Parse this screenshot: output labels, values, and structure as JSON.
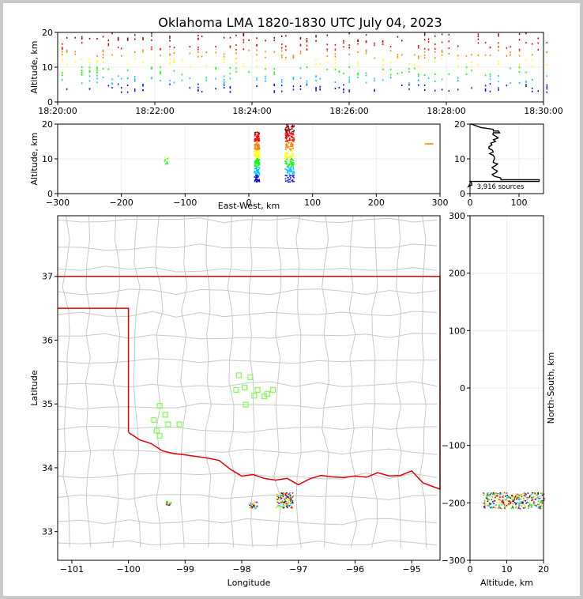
{
  "title": "Oklahoma LMA 1820-1830 UTC July 04, 2023",
  "chart_data": [
    {
      "id": "time-height",
      "type": "scatter",
      "ylabel": "Altitude, km",
      "xlim": [
        "18:20:00",
        "18:30:00"
      ],
      "ylim": [
        0,
        20
      ],
      "x_ticks": [
        "18:20:00",
        "18:22:00",
        "18:24:00",
        "18:26:00",
        "18:28:00",
        "18:30:00"
      ],
      "y_ticks": [
        "0",
        "10",
        "20"
      ],
      "source_altitude_range_km": [
        3,
        20
      ]
    },
    {
      "id": "ew-height",
      "type": "scatter",
      "xlabel": "East-West, km",
      "ylabel": "Altitude, km",
      "xlim": [
        -300,
        300
      ],
      "ylim": [
        0,
        20
      ],
      "x_ticks": [
        "−300",
        "−200",
        "−100",
        "0",
        "100",
        "200",
        "300"
      ],
      "y_ticks": [
        "0",
        "10",
        "20"
      ],
      "clusters": [
        {
          "x": -130,
          "z": [
            8,
            11
          ]
        },
        {
          "x": 12,
          "z": [
            3.5,
            18
          ]
        },
        {
          "x": 63,
          "z": [
            3.5,
            20
          ]
        },
        {
          "x": 282,
          "z": [
            14.5,
            14.5
          ]
        }
      ]
    },
    {
      "id": "altitude-histogram",
      "type": "line",
      "annotation": "3,916 sources",
      "xlim": [
        0,
        150
      ],
      "ylim": [
        0,
        20
      ],
      "x_ticks": [
        "0",
        "100"
      ],
      "y_ticks": [
        "0",
        "10",
        "20"
      ],
      "profile": [
        [
          2,
          0.5
        ],
        [
          3,
          5
        ],
        [
          3.5,
          140
        ],
        [
          4,
          60
        ],
        [
          5,
          48
        ],
        [
          6,
          52
        ],
        [
          7,
          45
        ],
        [
          8,
          55
        ],
        [
          9,
          48
        ],
        [
          10,
          50
        ],
        [
          11,
          45
        ],
        [
          12,
          50
        ],
        [
          13,
          40
        ],
        [
          14,
          45
        ],
        [
          15,
          50
        ],
        [
          16,
          55
        ],
        [
          17,
          48
        ],
        [
          17.5,
          60
        ],
        [
          18,
          45
        ],
        [
          19,
          20
        ],
        [
          20,
          3
        ]
      ]
    },
    {
      "id": "plan-view",
      "type": "scatter",
      "xlabel": "Longitude",
      "ylabel": "Latitude",
      "xlim": [
        -101.25,
        -94.5
      ],
      "ylim": [
        32.55,
        37.95
      ],
      "x_ticks": [
        "−101",
        "−100",
        "−99",
        "−98",
        "−97",
        "−96",
        "−95"
      ],
      "y_ticks": [
        "33",
        "34",
        "35",
        "36",
        "37"
      ],
      "stations": [
        [
          -99.45,
          34.97
        ],
        [
          -99.35,
          34.83
        ],
        [
          -99.55,
          34.75
        ],
        [
          -99.3,
          34.68
        ],
        [
          -99.5,
          34.58
        ],
        [
          -99.45,
          34.5
        ],
        [
          -99.1,
          34.68
        ],
        [
          -98.05,
          35.45
        ],
        [
          -97.85,
          35.42
        ],
        [
          -97.95,
          35.26
        ],
        [
          -98.1,
          35.22
        ],
        [
          -97.72,
          35.22
        ],
        [
          -97.78,
          35.13
        ],
        [
          -97.55,
          35.16
        ],
        [
          -97.45,
          35.22
        ],
        [
          -97.6,
          35.12
        ],
        [
          -97.93,
          34.99
        ]
      ],
      "clusters": [
        {
          "lon": -97.25,
          "lat": 33.5,
          "spread": 0.15
        },
        {
          "lon": -97.8,
          "lat": 33.42,
          "spread": 0.07
        },
        {
          "lon": -99.3,
          "lat": 33.45,
          "spread": 0.04
        }
      ]
    },
    {
      "id": "ns-height",
      "type": "scatter",
      "xlabel": "Altitude, km",
      "ylabel": "North-South, km",
      "xlim": [
        0,
        20
      ],
      "ylim": [
        -300,
        300
      ],
      "x_ticks": [
        "0",
        "10",
        "20"
      ],
      "y_ticks": [
        "−300",
        "−200",
        "−100",
        "0",
        "100",
        "200",
        "300"
      ],
      "cluster_ns_km": -195,
      "cluster_alt_km": [
        3.5,
        20
      ]
    }
  ],
  "colors": {
    "scale": [
      "#0000ff",
      "#00c8ff",
      "#00ff00",
      "#ffff00",
      "#ff8000",
      "#ff0000",
      "#8b0000"
    ],
    "state_border": "#e00000",
    "county": "#c8c8c8",
    "station": "#7cff4f"
  }
}
